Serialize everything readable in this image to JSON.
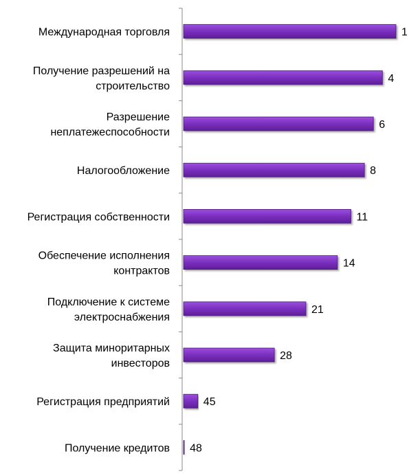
{
  "chart_data": {
    "type": "bar",
    "orientation": "horizontal",
    "categories": [
      [
        "Международная торговля"
      ],
      [
        "Получение разрешений  на",
        "строительство"
      ],
      [
        "Разрешение",
        "неплатежеспособности"
      ],
      [
        "Налогообложение"
      ],
      [
        "Регистрация собственности"
      ],
      [
        "Обеспечение исполнения",
        "контрактов"
      ],
      [
        "Подключение к системе",
        "электроснабжения"
      ],
      [
        "Защита миноритарных",
        "инвесторов"
      ],
      [
        "Регистрация предприятий"
      ],
      [
        "Получение кредитов"
      ]
    ],
    "values": [
      1,
      4,
      6,
      8,
      11,
      14,
      21,
      28,
      45,
      48
    ],
    "value_labels": [
      "1",
      "4",
      "6",
      "8",
      "11",
      "14",
      "21",
      "28",
      "45",
      "48"
    ],
    "bar_color": "#7b2fbe",
    "bar_edge_color": "#4a1a78",
    "data_labels": true,
    "grid": false
  }
}
